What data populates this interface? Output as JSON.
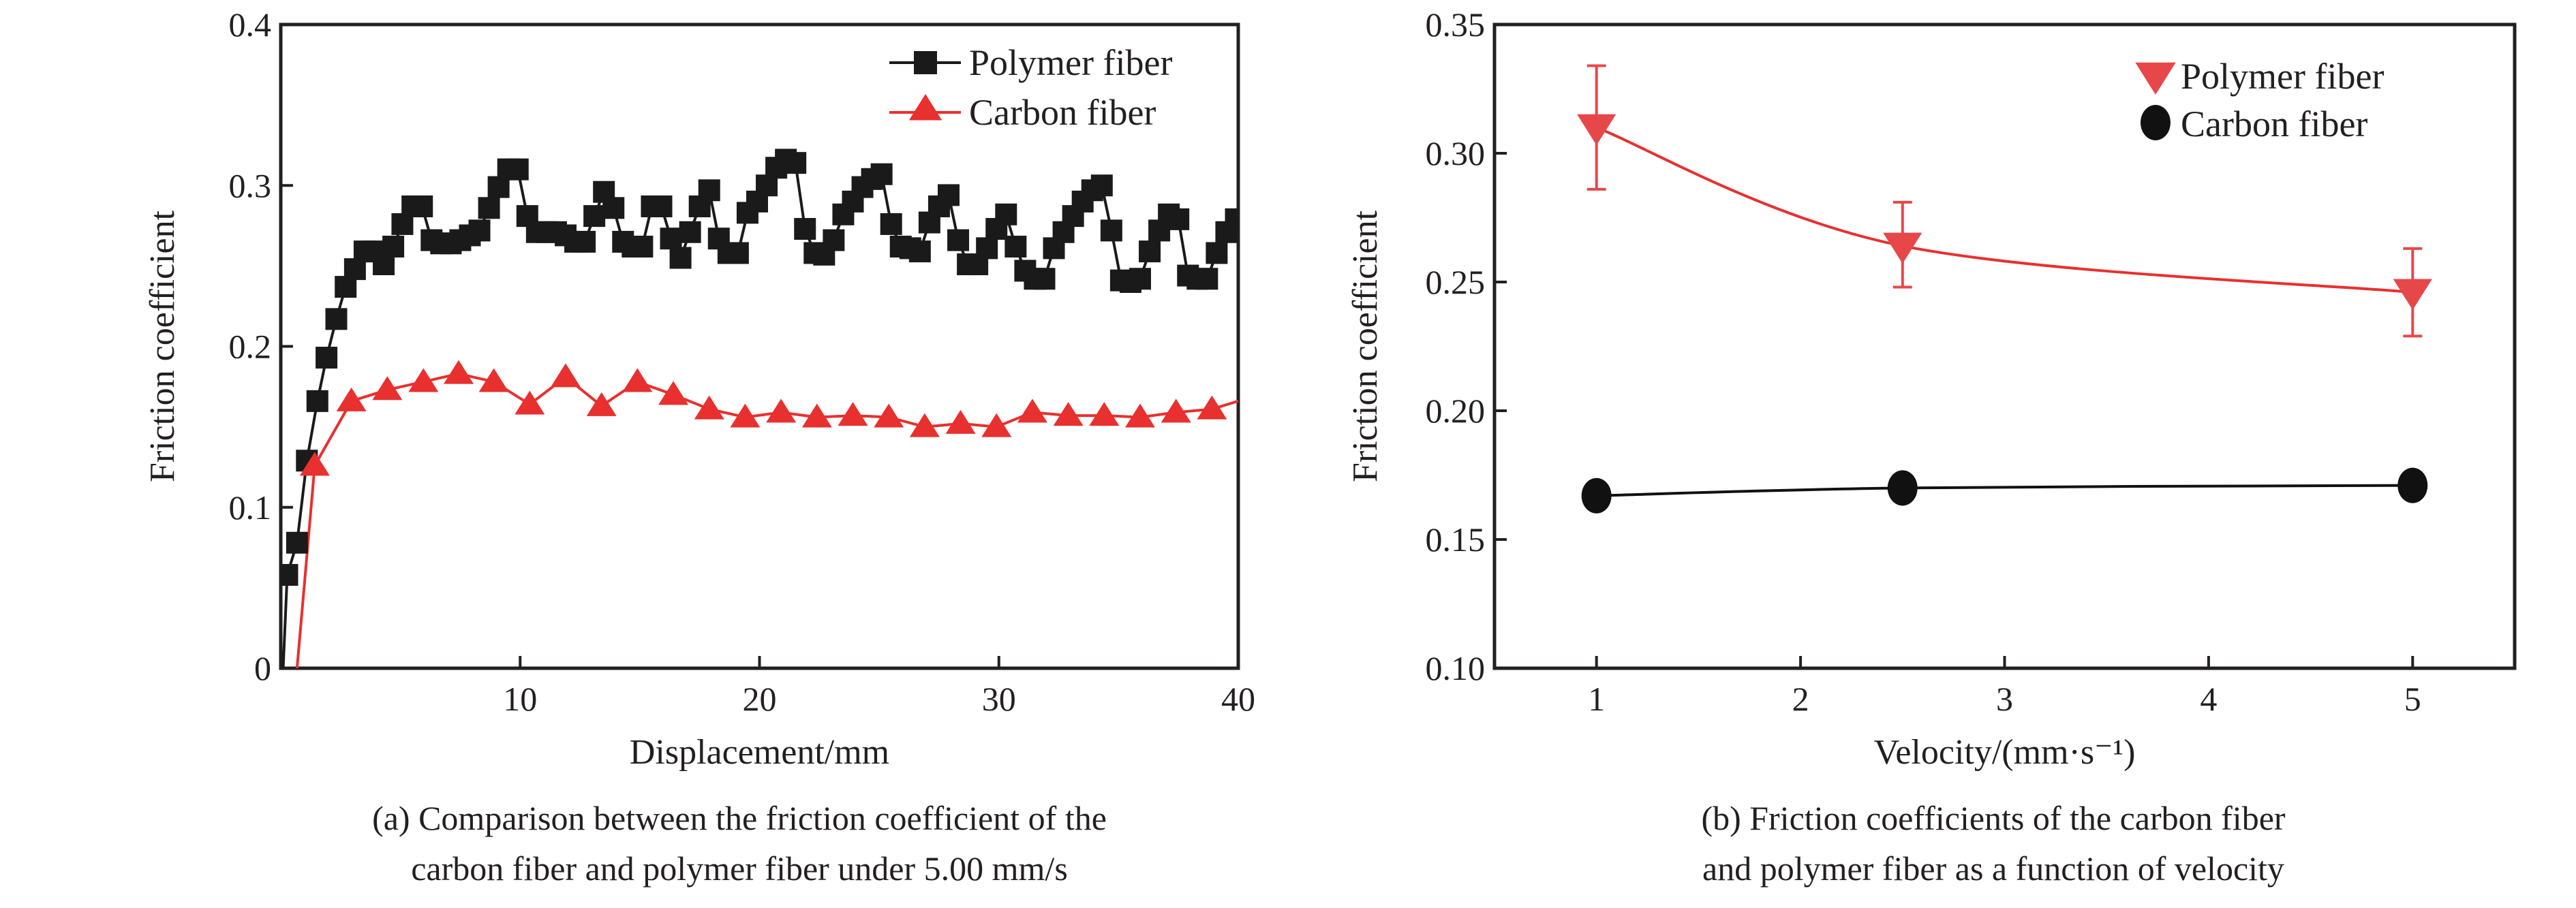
{
  "colors": {
    "polymer_a": "#1a1a1a",
    "carbon_a": "#e8302f",
    "polymer_b": "#e8474a",
    "carbon_b": "#111111",
    "axis": "#231f20"
  },
  "chart_data": [
    {
      "type": "line",
      "caption_lines": [
        "(a) Comparison between the friction coefficient of the",
        "carbon fiber and polymer fiber under 5.00 mm/s"
      ],
      "xlabel": "Displacement/mm",
      "ylabel": "Friction coefficient",
      "xlim": [
        0,
        40
      ],
      "ylim": [
        0,
        0.4
      ],
      "xticks": [
        10,
        20,
        30,
        40
      ],
      "xtick_labels": [
        "10",
        "20",
        "30",
        "40"
      ],
      "yticks": [
        0,
        0.1,
        0.2,
        0.3,
        0.4
      ],
      "ytick_labels": [
        "0",
        "0.1",
        "0.2",
        "0.3",
        "0.4"
      ],
      "grid": false,
      "legend_position": "top-right",
      "series": [
        {
          "name": "Polymer fiber",
          "marker": "square",
          "x": [
            0.27,
            0.68,
            1.09,
            1.53,
            1.91,
            2.32,
            2.71,
            3.1,
            3.5,
            3.9,
            4.3,
            4.7,
            5.08,
            5.5,
            5.9,
            6.3,
            6.7,
            7.1,
            7.5,
            7.9,
            8.3,
            8.7,
            9.1,
            9.5,
            9.9,
            10.3,
            10.7,
            11.1,
            11.5,
            11.9,
            12.3,
            12.7,
            13.1,
            13.5,
            13.9,
            14.3,
            14.7,
            15.1,
            15.5,
            15.9,
            16.3,
            16.7,
            17.1,
            17.5,
            17.9,
            18.3,
            18.7,
            19.1,
            19.5,
            19.9,
            20.3,
            20.7,
            21.1,
            21.5,
            21.9,
            22.3,
            22.7,
            23.1,
            23.5,
            23.9,
            24.3,
            24.7,
            25.1,
            25.5,
            25.9,
            26.3,
            26.7,
            27.1,
            27.5,
            27.9,
            28.3,
            28.7,
            29.1,
            29.5,
            29.9,
            30.3,
            30.7,
            31.1,
            31.5,
            31.9,
            32.3,
            32.7,
            33.1,
            33.5,
            33.9,
            34.3,
            34.7,
            35.1,
            35.5,
            35.9,
            36.3,
            36.7,
            37.1,
            37.5,
            37.9,
            38.3,
            38.7,
            39.1,
            39.5,
            39.9
          ],
          "y": [
            0.058,
            0.078,
            0.129,
            0.166,
            0.193,
            0.217,
            0.237,
            0.248,
            0.259,
            0.259,
            0.251,
            0.262,
            0.276,
            0.287,
            0.287,
            0.266,
            0.264,
            0.264,
            0.266,
            0.269,
            0.272,
            0.286,
            0.299,
            0.31,
            0.31,
            0.281,
            0.271,
            0.271,
            0.271,
            0.269,
            0.265,
            0.265,
            0.281,
            0.296,
            0.286,
            0.265,
            0.262,
            0.262,
            0.287,
            0.287,
            0.267,
            0.255,
            0.271,
            0.287,
            0.297,
            0.267,
            0.258,
            0.258,
            0.283,
            0.29,
            0.3,
            0.311,
            0.316,
            0.314,
            0.273,
            0.258,
            0.257,
            0.266,
            0.282,
            0.29,
            0.299,
            0.304,
            0.307,
            0.276,
            0.262,
            0.261,
            0.259,
            0.277,
            0.287,
            0.294,
            0.266,
            0.251,
            0.251,
            0.261,
            0.273,
            0.282,
            0.262,
            0.247,
            0.242,
            0.242,
            0.261,
            0.271,
            0.281,
            0.29,
            0.297,
            0.3,
            0.272,
            0.241,
            0.24,
            0.242,
            0.259,
            0.272,
            0.282,
            0.279,
            0.244,
            0.242,
            0.242,
            0.258,
            0.271,
            0.279
          ],
          "line_start": [
            0.1,
            0
          ]
        },
        {
          "name": "Carbon fiber",
          "marker": "triangle-up",
          "x": [
            1.42,
            2.95,
            4.45,
            5.96,
            7.43,
            8.9,
            10.4,
            11.9,
            13.4,
            14.9,
            16.4,
            17.9,
            19.4,
            20.9,
            22.4,
            23.9,
            25.4,
            26.9,
            28.4,
            29.9,
            31.4,
            32.9,
            34.4,
            35.9,
            37.4,
            38.9
          ],
          "y": [
            0.126,
            0.166,
            0.173,
            0.178,
            0.183,
            0.178,
            0.164,
            0.181,
            0.163,
            0.178,
            0.17,
            0.161,
            0.156,
            0.159,
            0.156,
            0.157,
            0.156,
            0.15,
            0.152,
            0.15,
            0.159,
            0.157,
            0.157,
            0.156,
            0.159,
            0.161
          ],
          "line_start": [
            0.68,
            0
          ],
          "line_end": [
            40,
            0.166
          ]
        }
      ]
    },
    {
      "type": "scatter",
      "caption_lines": [
        "(b) Friction coefficients of the carbon fiber",
        "and polymer fiber as a function of velocity"
      ],
      "xlabel": "Velocity/(mm·s⁻¹)",
      "ylabel": "Friction coefficient",
      "xlim": [
        0.5,
        5.5
      ],
      "ylim": [
        0.1,
        0.35
      ],
      "xticks": [
        1,
        2,
        3,
        4,
        5
      ],
      "xtick_labels": [
        "1",
        "2",
        "3",
        "4",
        "5"
      ],
      "yticks": [
        0.1,
        0.15,
        0.2,
        0.25,
        0.3,
        0.35
      ],
      "ytick_labels": [
        "0.10",
        "0.15",
        "0.20",
        "0.25",
        "0.30",
        "0.35"
      ],
      "grid": false,
      "legend_position": "top-right",
      "fit_curves": true,
      "series": [
        {
          "name": "Polymer fiber",
          "marker": "triangle-down",
          "x": [
            1,
            2.5,
            5
          ],
          "y": [
            0.31,
            0.264,
            0.246
          ],
          "err_low": [
            0.286,
            0.248,
            0.229
          ],
          "err_high": [
            0.334,
            0.281,
            0.263
          ]
        },
        {
          "name": "Carbon fiber",
          "marker": "circle",
          "x": [
            1,
            2.5,
            5
          ],
          "y": [
            0.167,
            0.17,
            0.171
          ],
          "err_low": [
            0.164,
            0.166,
            0.168
          ],
          "err_high": [
            0.171,
            0.174,
            0.174
          ]
        }
      ]
    }
  ]
}
